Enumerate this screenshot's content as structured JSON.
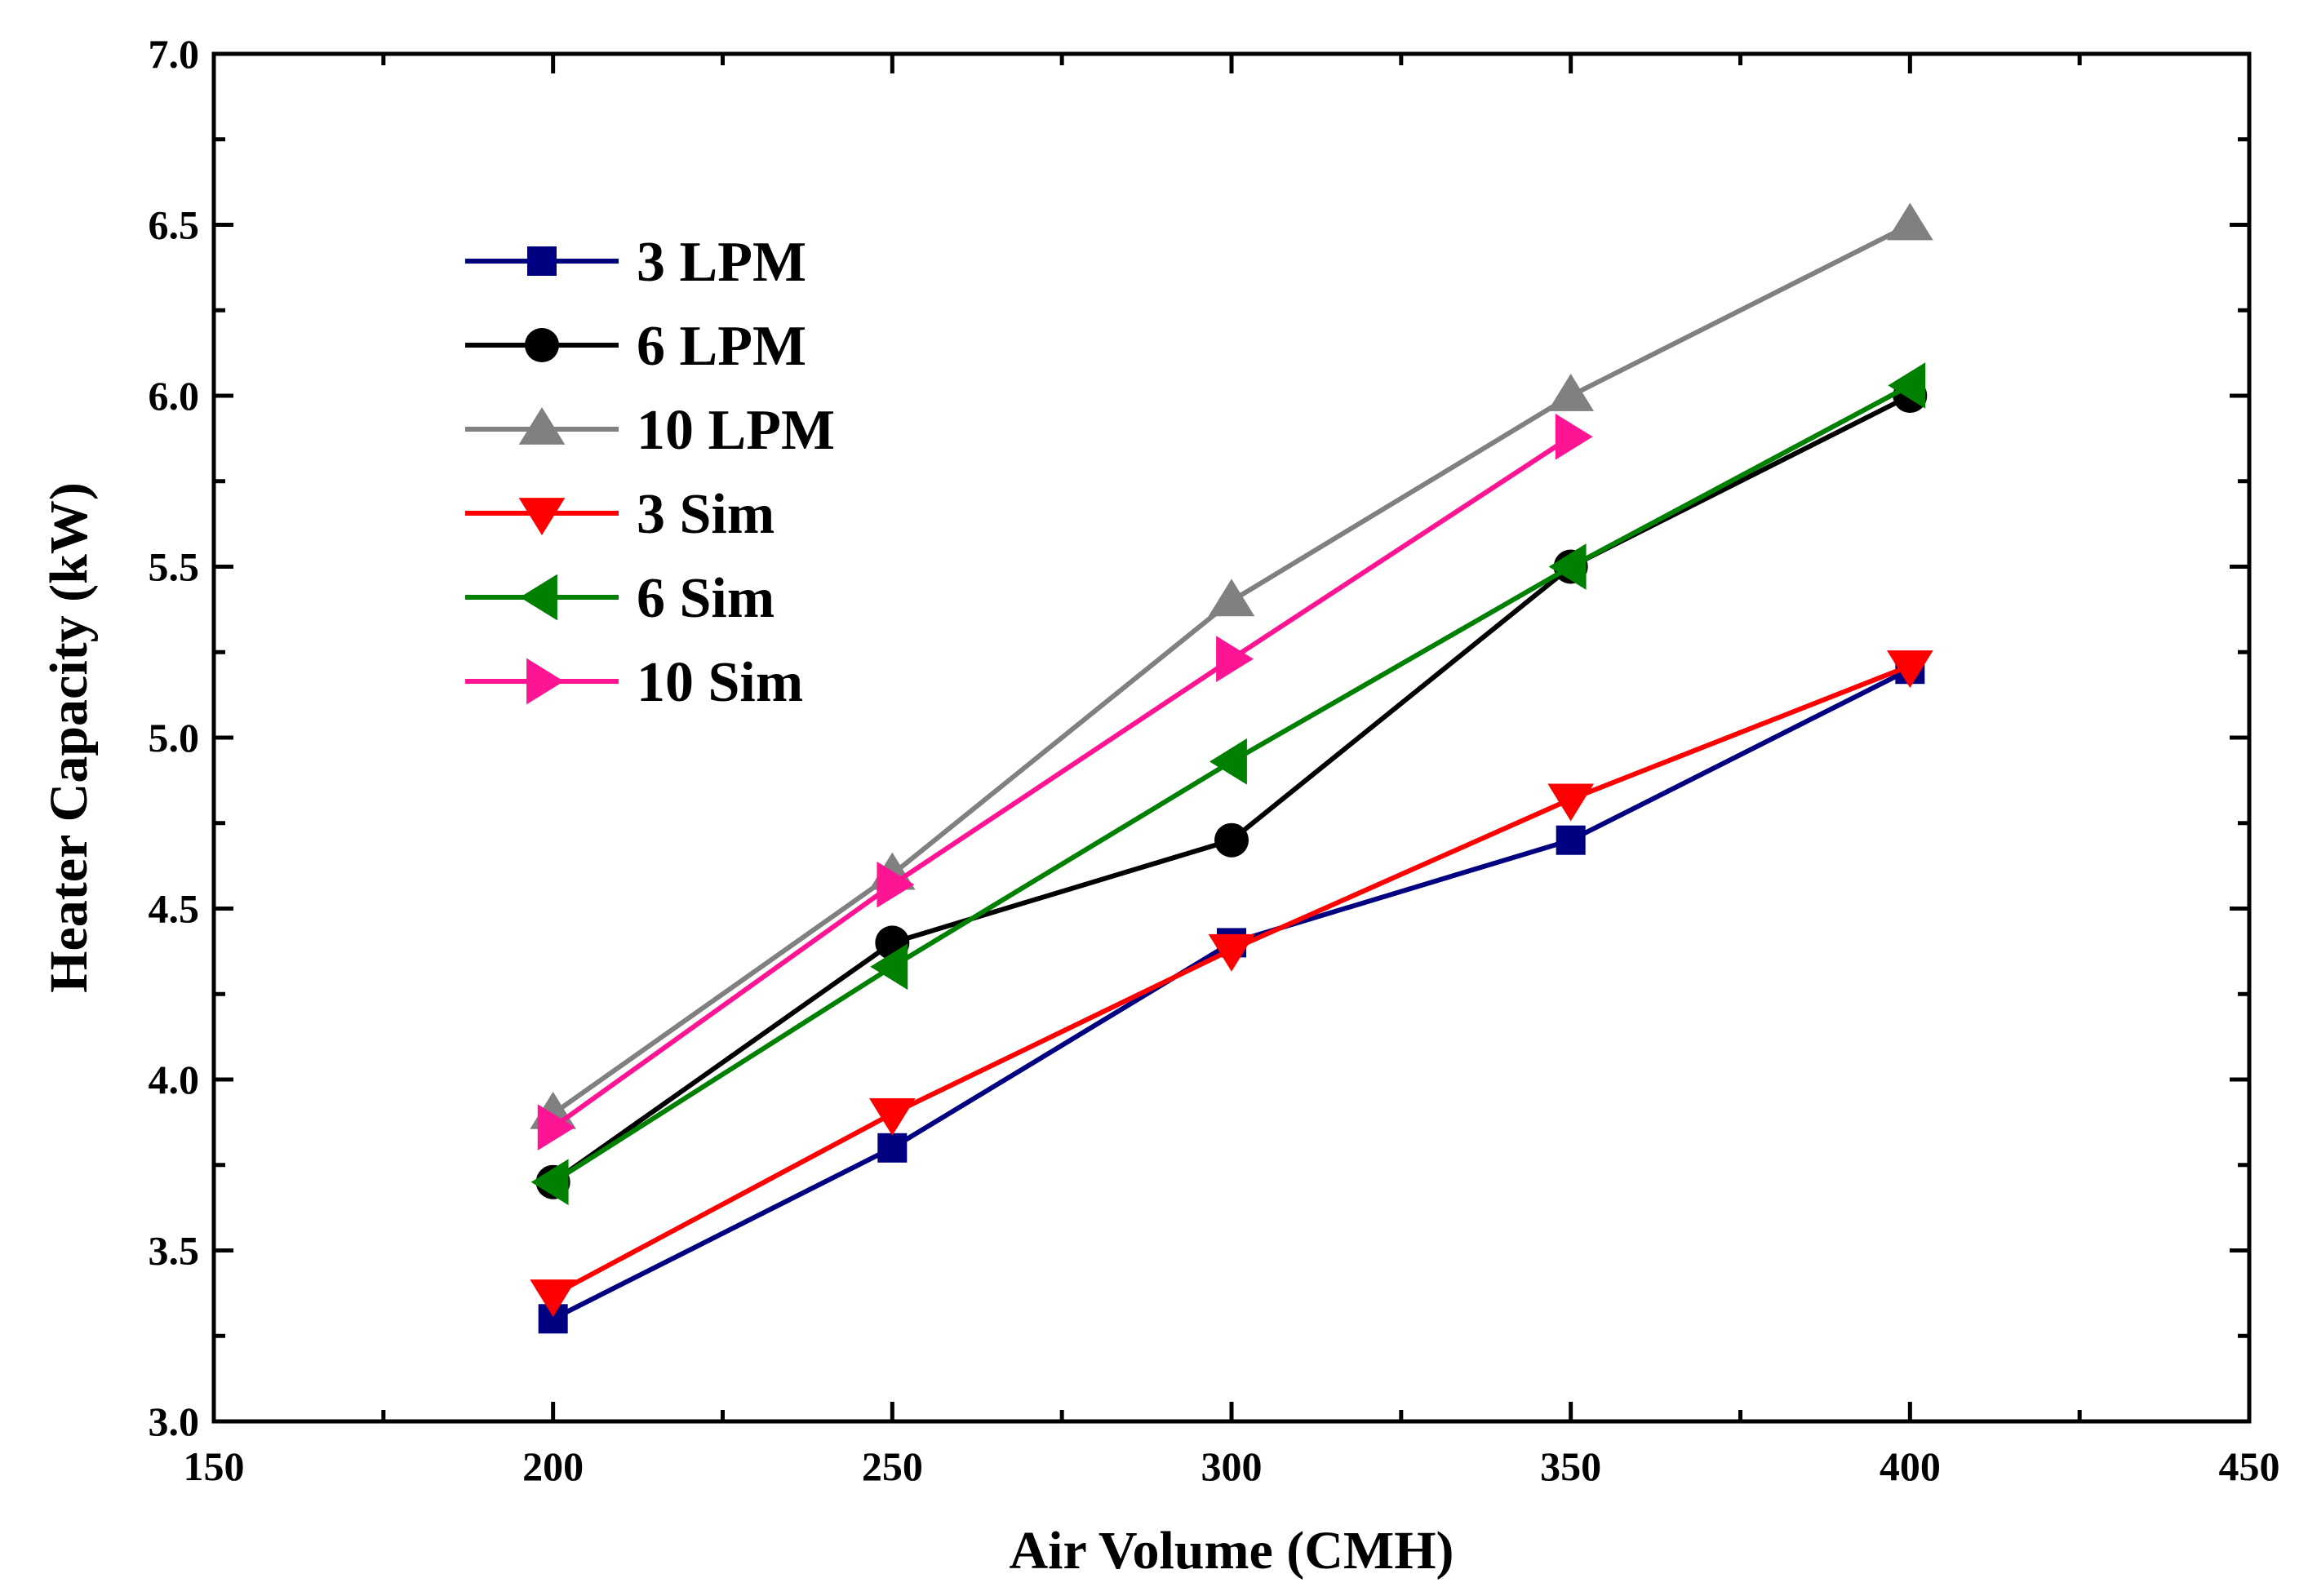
{
  "chart_data": {
    "type": "line",
    "title": "",
    "xlabel": "Air Volume (CMH)",
    "ylabel": "Heater Capacity (kW)",
    "xlim": [
      150,
      450
    ],
    "ylim": [
      3.0,
      7.0
    ],
    "x_ticks": [
      150,
      200,
      250,
      300,
      350,
      400,
      450
    ],
    "x_tick_labels": [
      "150",
      "200",
      "250",
      "300",
      "350",
      "400",
      "450"
    ],
    "y_ticks": [
      3.0,
      3.5,
      4.0,
      4.5,
      5.0,
      5.5,
      6.0,
      6.5,
      7.0
    ],
    "y_tick_labels": [
      "3.0",
      "3.5",
      "4.0",
      "4.5",
      "5.0",
      "5.5",
      "6.0",
      "6.5",
      "7.0"
    ],
    "grid": false,
    "legend_position": "top-left",
    "series": [
      {
        "name": "3 LPM",
        "color": "#000080",
        "marker": "square",
        "x": [
          200,
          250,
          300,
          350,
          400
        ],
        "values": [
          3.3,
          3.8,
          4.4,
          4.7,
          5.2
        ]
      },
      {
        "name": "6 LPM",
        "color": "#000000",
        "marker": "circle",
        "x": [
          200,
          250,
          300,
          350,
          400
        ],
        "values": [
          3.7,
          4.4,
          4.7,
          5.5,
          6.0
        ]
      },
      {
        "name": "10 LPM",
        "color": "#808080",
        "marker": "triangle-up",
        "x": [
          200,
          250,
          300,
          350,
          400
        ],
        "values": [
          3.9,
          4.6,
          5.4,
          6.0,
          6.5
        ]
      },
      {
        "name": "3 Sim",
        "color": "#FF0000",
        "marker": "triangle-down",
        "x": [
          200,
          250,
          300,
          350,
          400
        ],
        "values": [
          3.37,
          3.9,
          4.38,
          4.82,
          5.21
        ]
      },
      {
        "name": "6 Sim",
        "color": "#008000",
        "marker": "triangle-left",
        "x": [
          200,
          250,
          300,
          350,
          400
        ],
        "values": [
          3.7,
          4.33,
          4.93,
          5.5,
          6.03
        ]
      },
      {
        "name": "10 Sim",
        "color": "#FF1493",
        "marker": "triangle-right",
        "x": [
          200,
          250,
          300,
          350
        ],
        "values": [
          3.86,
          4.57,
          5.23,
          5.88
        ]
      }
    ]
  }
}
